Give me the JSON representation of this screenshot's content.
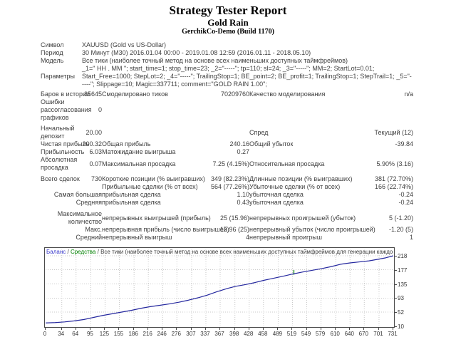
{
  "header": {
    "title": "Strategy Tester Report",
    "expert_name": "Gold Rain",
    "server": "GerchikCo-Demo (Build 1170)"
  },
  "table": {
    "symbol_label": "Символ",
    "symbol_value": "XAUUSD (Gold vs US-Dollar)",
    "period_label": "Период",
    "period_value": "30 Минут (M30) 2016.01.04 00:00 - 2019.01.08 12:59 (2016.01.11 - 2018.05.10)",
    "model_label": "Модель",
    "model_value": "Все тики (наиболее точный метод на основе всех наименьших доступных таймфреймов)",
    "params_label": "Параметры",
    "params_value": "_1=\" HH . MM \"; start_time=1; stop_time=23; _2=\"-----\"; tp=110; sl=24; _3=\"-----\"; MM=2; StartLot=0.01; Start_Free=1000; StepLot=2; _4=\"-----\"; TrailingStop=1; BE_point=2; BE_profit=1; TrailingStop=1; StepTrail=1; _5=\"-----\"; Slippage=10; Magic=337711; comment=\"GOLD RAIN 1.00\";",
    "bars_label": "Баров в истории",
    "bars_value": "35645",
    "ticks_label": "Смоделировано тиков",
    "ticks_value": "70209760",
    "quality_label": "Качество моделирования",
    "quality_value": "n/a",
    "mismatch_label": "Ошибки рассогласования графиков",
    "mismatch_value": "0",
    "deposit_label": "Начальный депозит",
    "deposit_value": "20.00",
    "spread_label": "Спред",
    "spread_value": "Текущий (12)",
    "net_label": "Чистая прибыль",
    "net_value": "200.32",
    "gross_profit_label": "Общая прибыль",
    "gross_profit_value": "240.16",
    "gross_loss_label": "Общий убыток",
    "gross_loss_value": "-39.84",
    "pf_label": "Прибыльность",
    "pf_value": "6.03",
    "expected_label": "Матожидание выигрыша",
    "expected_value": "0.27",
    "abs_dd_label": "Абсолютная просадка",
    "abs_dd_value": "0.07",
    "max_dd_label": "Максимальная просадка",
    "max_dd_value": "7.25 (4.15%)",
    "rel_dd_label": "Относительная просадка",
    "rel_dd_value": "5.90% (3.16)",
    "trades_label": "Всего сделок",
    "trades_value": "730",
    "short_label": "Короткие позиции (% выигравших)",
    "short_value": "349 (82.23%)",
    "long_label": "Длинные позиции (% выигравших)",
    "long_value": "381 (72.70%)",
    "profit_trades_label": "Прибыльные сделки (% от всех)",
    "profit_trades_value": "564 (77.26%)",
    "loss_trades_label": "Убыточные сделки (% от всех)",
    "loss_trades_value": "166 (22.74%)",
    "largest_label": "Самая большая",
    "largest_profit_label": "прибыльная сделка",
    "largest_profit_value": "1.10",
    "largest_loss_label": "убыточная сделка",
    "largest_loss_value": "-0.24",
    "average_label": "Средняя",
    "average_profit_label": "прибыльная сделка",
    "average_profit_value": "0.43",
    "average_loss_label": "убыточная сделка",
    "average_loss_value": "-0.24",
    "maxcount_label": "Максимальное количество",
    "maxcount_wins_label": "непрерывных выигрышей (прибыль)",
    "maxcount_wins_value": "25 (15.96)",
    "maxcount_losses_label": "непрерывных проигрышей (убыток)",
    "maxcount_losses_value": "5 (-1.20)",
    "maximal_label": "Макс.",
    "maximal_profit_label": "непрерывная прибыль (число выигрышей)",
    "maximal_profit_value": "15.96 (25)",
    "maximal_loss_label": "непрерывный убыток (число проигрышей)",
    "maximal_loss_value": "-1.20 (5)",
    "avgcont_label": "Средний",
    "avgcont_win_label": "непрерывный выигрыш",
    "avgcont_win_value": "4",
    "avgcont_loss_label": "непрерывный проигрыш",
    "avgcont_loss_value": "1"
  },
  "legend": {
    "balance": "Баланс",
    "separator": "/",
    "equity": "Средства",
    "model": "Все тики (наиболее точный метод на основе всех наименьших доступных таймфреймов для генерации каждого тика)"
  },
  "colors": {
    "balance_line": "#24279e",
    "equity_line": "#008000",
    "legend_balance": "#3a3acb",
    "legend_equity": "#008000",
    "grid": "#c9c9c9",
    "chart_border": "#4a4a4a",
    "text": "#404040"
  },
  "chart_data": {
    "type": "line",
    "title": "Баланс / Средства",
    "xlabel": "",
    "ylabel": "",
    "xlim": [
      0,
      731
    ],
    "ylim": [
      10,
      218
    ],
    "grid": true,
    "x_ticks": [
      0,
      34,
      64,
      95,
      125,
      155,
      186,
      216,
      246,
      276,
      307,
      337,
      367,
      398,
      428,
      458,
      489,
      519,
      549,
      579,
      610,
      640,
      670,
      701,
      731
    ],
    "y_ticks": [
      218,
      177,
      135,
      93,
      52,
      10
    ],
    "series": [
      {
        "name": "Баланс",
        "color": "#24279e",
        "x": [
          0,
          20,
          40,
          60,
          80,
          100,
          120,
          140,
          160,
          180,
          200,
          220,
          240,
          260,
          280,
          300,
          320,
          340,
          360,
          383,
          400,
          420,
          440,
          460,
          480,
          500,
          522,
          540,
          560,
          580,
          600,
          620,
          640,
          660,
          680,
          700,
          715,
          731
        ],
        "y": [
          20,
          21,
          23,
          26,
          30,
          36,
          42,
          47,
          52,
          57,
          63,
          68,
          72,
          76,
          81,
          87,
          94,
          102,
          112,
          122,
          128,
          133,
          139,
          146,
          152,
          158,
          165,
          170,
          175,
          180,
          186,
          193,
          197,
          200,
          203,
          208,
          212,
          218
        ]
      },
      {
        "name": "Средства",
        "color": "#008000",
        "x": [
          522,
          522
        ],
        "y": [
          162,
          176
        ]
      }
    ]
  }
}
